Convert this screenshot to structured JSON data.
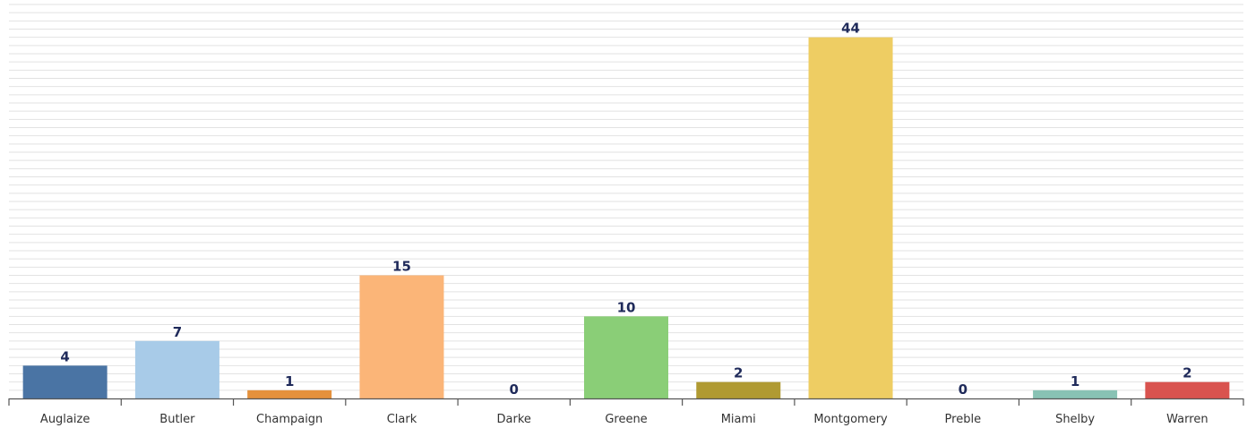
{
  "chart_data": {
    "type": "bar",
    "categories": [
      "Auglaize",
      "Butler",
      "Champaign",
      "Clark",
      "Darke",
      "Greene",
      "Miami",
      "Montgomery",
      "Preble",
      "Shelby",
      "Warren"
    ],
    "values": [
      4,
      7,
      1,
      15,
      0,
      10,
      2,
      44,
      0,
      1,
      2
    ],
    "colors": [
      "#4a74a4",
      "#a8cbe8",
      "#e4913c",
      "#fbb578",
      "#cccccc",
      "#8ace77",
      "#b09a32",
      "#eecd63",
      "#cccccc",
      "#88c2b4",
      "#d9534f"
    ],
    "title": "",
    "xlabel": "",
    "ylabel": "",
    "ylim": [
      0,
      48
    ],
    "grid": true,
    "legend": "none",
    "data_labels": true
  }
}
